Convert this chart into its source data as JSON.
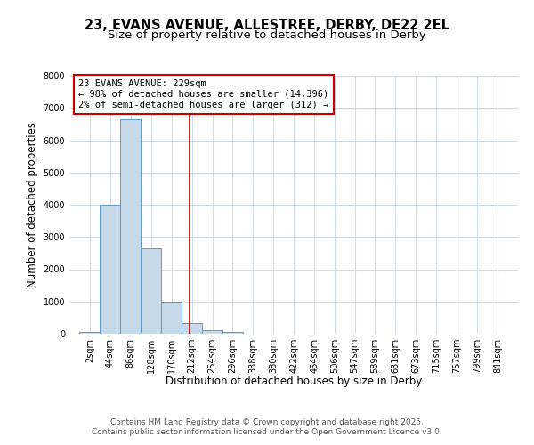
{
  "title_line1": "23, EVANS AVENUE, ALLESTREE, DERBY, DE22 2EL",
  "title_line2": "Size of property relative to detached houses in Derby",
  "xlabel": "Distribution of detached houses by size in Derby",
  "ylabel": "Number of detached properties",
  "bin_labels": [
    "2sqm",
    "44sqm",
    "86sqm",
    "128sqm",
    "170sqm",
    "212sqm",
    "254sqm",
    "296sqm",
    "338sqm",
    "380sqm",
    "422sqm",
    "464sqm",
    "506sqm",
    "547sqm",
    "589sqm",
    "631sqm",
    "673sqm",
    "715sqm",
    "757sqm",
    "799sqm",
    "841sqm"
  ],
  "bin_edges": [
    2,
    44,
    86,
    128,
    170,
    212,
    254,
    296,
    338,
    380,
    422,
    464,
    506,
    547,
    589,
    631,
    673,
    715,
    757,
    799,
    841
  ],
  "bin_width": 42,
  "bar_heights": [
    50,
    4000,
    6650,
    2650,
    1000,
    330,
    120,
    50,
    0,
    0,
    0,
    0,
    0,
    0,
    0,
    0,
    0,
    0,
    0,
    0
  ],
  "bar_color": "#c8daea",
  "bar_edge_color": "#5b9bd5",
  "ylim": [
    0,
    8000
  ],
  "yticks": [
    0,
    1000,
    2000,
    3000,
    4000,
    5000,
    6000,
    7000,
    8000
  ],
  "property_size": 229,
  "vline_color": "#cc0000",
  "annotation_text": "23 EVANS AVENUE: 229sqm\n← 98% of detached houses are smaller (14,396)\n2% of semi-detached houses are larger (312) →",
  "annotation_box_color": "#cc0000",
  "footer_line1": "Contains HM Land Registry data © Crown copyright and database right 2025.",
  "footer_line2": "Contains public sector information licensed under the Open Government Licence v3.0.",
  "background_color": "#ffffff",
  "grid_color": "#d0dce8",
  "title_fontsize": 10.5,
  "subtitle_fontsize": 9.5,
  "axis_label_fontsize": 8.5,
  "tick_fontsize": 7,
  "annotation_fontsize": 7.5,
  "footer_fontsize": 6.5
}
